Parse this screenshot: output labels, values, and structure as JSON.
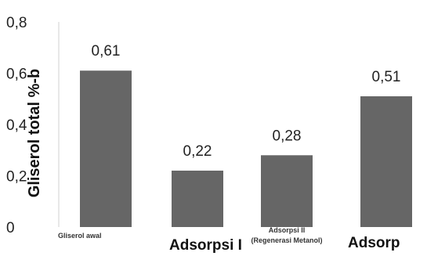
{
  "chart_data": {
    "type": "bar",
    "categories": [
      "Gliserol awal",
      "Adsorpsi I",
      "Adsorpsi II (Regenerasi Metanol)",
      "Adsorp"
    ],
    "values": [
      0.61,
      0.22,
      0.28,
      0.51
    ],
    "data_labels": [
      "0,61",
      "0,22",
      "0,28",
      "0,51"
    ],
    "ylabel": "Gliserol total %-b",
    "ylim": [
      0,
      0.8
    ],
    "y_ticks": [
      0,
      0.2,
      0.4,
      0.6,
      0.8
    ],
    "y_tick_labels": [
      "0",
      "0,2",
      "0,4",
      "0,6",
      "0,8"
    ],
    "bar_color": "#666666",
    "grid": false,
    "legend": "none"
  }
}
